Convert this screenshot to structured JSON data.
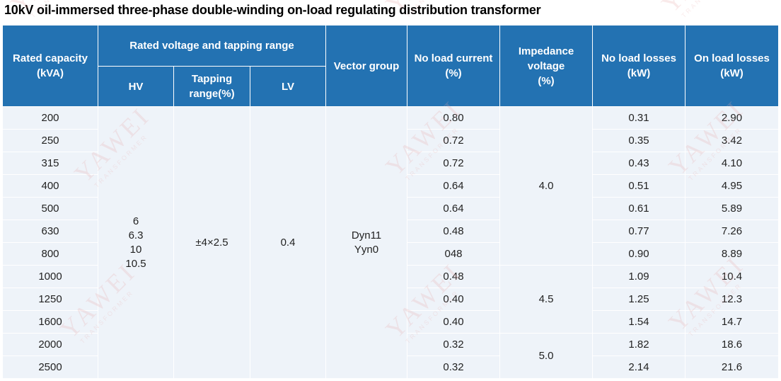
{
  "title": "10kV oil-immersed three-phase double-winding on-load regulating distribution transformer",
  "headers": {
    "rated_capacity": [
      "Rated capacity",
      "(kVA)"
    ],
    "rated_voltage_group": "Rated voltage and tapping range",
    "hv": "HV",
    "tapping_range": [
      "Tapping",
      "range(%)"
    ],
    "lv": "LV",
    "vector_group": "Vector group",
    "no_load_current": [
      "No load current",
      "(%)"
    ],
    "impedance_voltage": [
      "Impedance",
      "voltage",
      "(%)"
    ],
    "no_load_losses": [
      "No load losses",
      "(kW)"
    ],
    "on_load_losses": [
      "On load losses",
      "(kW)"
    ]
  },
  "shared": {
    "hv": [
      "6",
      "6.3",
      "10",
      "10.5"
    ],
    "tapping": "±4×2.5",
    "lv": "0.4",
    "vector_group": [
      "Dyn11",
      "Yyn0"
    ],
    "impedance": [
      "4.0",
      "4.5",
      "5.0"
    ]
  },
  "rows": [
    {
      "capacity": "200",
      "no_load_current": "0.80",
      "no_load_losses": "0.31",
      "on_load_losses": "2.90"
    },
    {
      "capacity": "250",
      "no_load_current": "0.72",
      "no_load_losses": "0.35",
      "on_load_losses": "3.42"
    },
    {
      "capacity": "315",
      "no_load_current": "0.72",
      "no_load_losses": "0.43",
      "on_load_losses": "4.10"
    },
    {
      "capacity": "400",
      "no_load_current": "0.64",
      "no_load_losses": "0.51",
      "on_load_losses": "4.95"
    },
    {
      "capacity": "500",
      "no_load_current": "0.64",
      "no_load_losses": "0.61",
      "on_load_losses": "5.89"
    },
    {
      "capacity": "630",
      "no_load_current": "0.48",
      "no_load_losses": "0.77",
      "on_load_losses": "7.26"
    },
    {
      "capacity": "800",
      "no_load_current": "048",
      "no_load_losses": "0.90",
      "on_load_losses": "8.89"
    },
    {
      "capacity": "1000",
      "no_load_current": "0.48",
      "no_load_losses": "1.09",
      "on_load_losses": "10.4"
    },
    {
      "capacity": "1250",
      "no_load_current": "0.40",
      "no_load_losses": "1.25",
      "on_load_losses": "12.3"
    },
    {
      "capacity": "1600",
      "no_load_current": "0.40",
      "no_load_losses": "1.54",
      "on_load_losses": "14.7"
    },
    {
      "capacity": "2000",
      "no_load_current": "0.32",
      "no_load_losses": "1.82",
      "on_load_losses": "18.6"
    },
    {
      "capacity": "2500",
      "no_load_current": "0.32",
      "no_load_losses": "2.14",
      "on_load_losses": "21.6"
    }
  ],
  "watermark": [
    "YAWEI",
    "TRANSFORMER"
  ],
  "colors": {
    "header_bg": "#2372b2",
    "header_text": "#ffffff",
    "cell_bg": "#eef3f9",
    "watermark": "#e8a5a5"
  }
}
